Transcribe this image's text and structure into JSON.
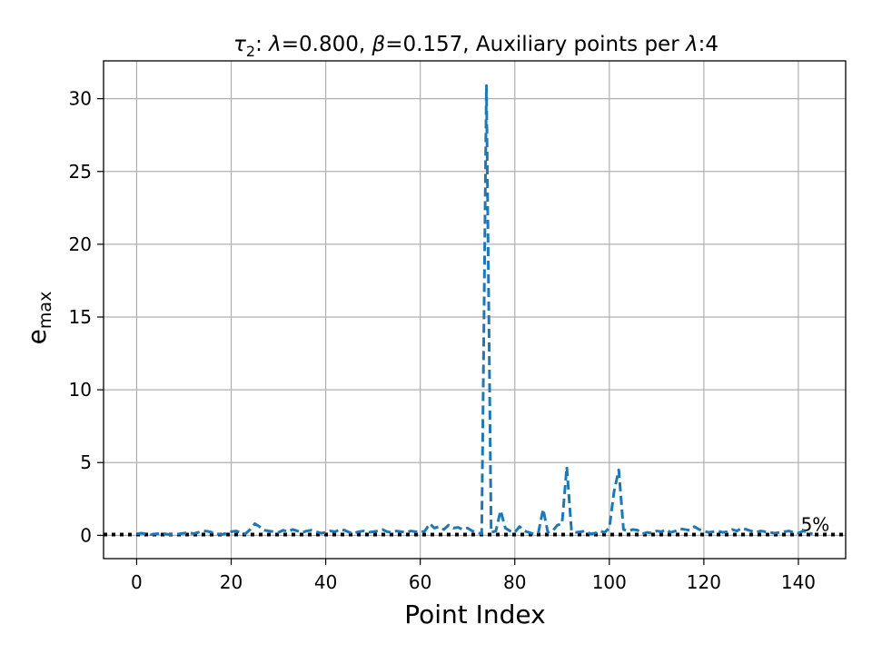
{
  "chart_data": {
    "type": "line",
    "title": {
      "tau": "τ",
      "tau_sub": "2",
      "sep1": ": ",
      "lambda_sym": "λ",
      "lambda_val": "=0.800, ",
      "beta_sym": "β",
      "beta_val": "=0.157, Auxiliary points per ",
      "lambda_sym2": "λ",
      "tail": ":4"
    },
    "xlabel": "Point Index",
    "ylabel_main": "e",
    "ylabel_sub": "max",
    "xlim": [
      -7,
      150
    ],
    "ylim": [
      -1.6,
      32.6
    ],
    "xticks": [
      0,
      20,
      40,
      60,
      80,
      100,
      120,
      140
    ],
    "yticks": [
      0,
      5,
      10,
      15,
      20,
      25,
      30
    ],
    "grid": true,
    "threshold": {
      "y": 0.05,
      "label": "5%",
      "label_x": 140.5
    },
    "series": [
      {
        "color": "#1f77b4",
        "style": "dashed",
        "x": [
          0,
          1,
          2,
          3,
          4,
          5,
          6,
          7,
          8,
          9,
          10,
          11,
          12,
          13,
          14,
          15,
          16,
          17,
          18,
          19,
          20,
          21,
          22,
          23,
          24,
          25,
          26,
          27,
          28,
          29,
          30,
          31,
          32,
          33,
          34,
          35,
          36,
          37,
          38,
          39,
          40,
          41,
          42,
          43,
          44,
          45,
          46,
          47,
          48,
          49,
          50,
          51,
          52,
          53,
          54,
          55,
          56,
          57,
          58,
          59,
          60,
          61,
          62,
          63,
          64,
          65,
          66,
          67,
          68,
          69,
          70,
          71,
          72,
          73,
          74,
          75,
          76,
          77,
          78,
          79,
          80,
          81,
          82,
          83,
          84,
          85,
          86,
          87,
          88,
          89,
          90,
          91,
          92,
          93,
          94,
          95,
          96,
          97,
          98,
          99,
          100,
          101,
          102,
          103,
          104,
          105,
          106,
          107,
          108,
          109,
          110,
          111,
          112,
          113,
          114,
          115,
          116,
          117,
          118,
          119,
          120,
          121,
          122,
          123,
          124,
          125,
          126,
          127,
          128,
          129,
          130,
          131,
          132,
          133,
          134,
          135,
          136,
          137,
          138,
          139,
          140,
          141,
          142,
          143
        ],
        "y": [
          0.1,
          0.15,
          0.1,
          0.05,
          0.1,
          0.12,
          0.1,
          0.05,
          0.08,
          0.1,
          0.15,
          0.18,
          0.12,
          0.2,
          0.3,
          0.28,
          0.2,
          0.1,
          0.05,
          0.15,
          0.25,
          0.3,
          0.2,
          0.1,
          0.4,
          0.8,
          0.6,
          0.35,
          0.3,
          0.25,
          0.2,
          0.35,
          0.25,
          0.4,
          0.3,
          0.2,
          0.3,
          0.35,
          0.25,
          0.15,
          0.2,
          0.3,
          0.25,
          0.4,
          0.35,
          0.2,
          0.15,
          0.25,
          0.3,
          0.2,
          0.25,
          0.3,
          0.4,
          0.25,
          0.2,
          0.3,
          0.25,
          0.2,
          0.3,
          0.25,
          0.2,
          0.3,
          0.8,
          0.5,
          0.6,
          0.4,
          0.7,
          0.5,
          0.55,
          0.4,
          0.5,
          0.3,
          0.2,
          0.1,
          30.9,
          0.2,
          0.3,
          1.7,
          0.5,
          0.3,
          0.2,
          0.6,
          0.3,
          0.2,
          0.1,
          0.2,
          1.8,
          0.2,
          0.3,
          0.7,
          0.8,
          4.7,
          0.3,
          0.2,
          0.25,
          0.3,
          0.1,
          0.15,
          0.3,
          0.2,
          0.5,
          3.0,
          4.5,
          0.4,
          0.3,
          0.4,
          0.35,
          0.1,
          0.2,
          0.15,
          0.3,
          0.25,
          0.4,
          0.2,
          0.3,
          0.45,
          0.4,
          0.35,
          0.6,
          0.4,
          0.3,
          0.2,
          0.25,
          0.3,
          0.2,
          0.25,
          0.4,
          0.3,
          0.5,
          0.4,
          0.3,
          0.2,
          0.3,
          0.25,
          0.2,
          0.15,
          0.2,
          0.25,
          0.3,
          0.2,
          0.15,
          0.3,
          0.2,
          0.1
        ]
      }
    ]
  }
}
